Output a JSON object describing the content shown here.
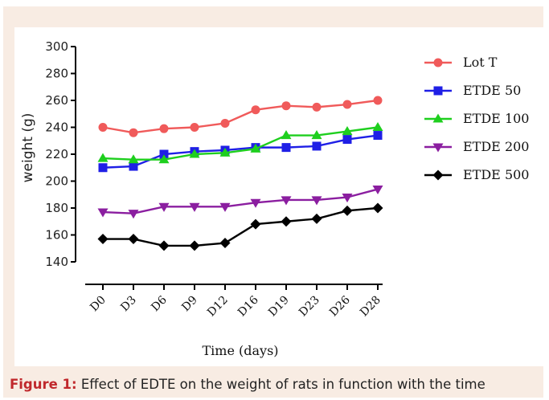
{
  "figure_label": "Figure 1:",
  "caption_text": " Effect of EDTE on the weight of rats in function with the time",
  "chart_data": {
    "type": "line",
    "title": "",
    "xlabel": "Time (days)",
    "ylabel": "weight (g)",
    "ylim": [
      140,
      300
    ],
    "yticks": [
      140,
      160,
      180,
      200,
      220,
      240,
      260,
      280,
      300
    ],
    "categories": [
      "D0",
      "D3",
      "D6",
      "D9",
      "D12",
      "D16",
      "D19",
      "D23",
      "D26",
      "D28"
    ],
    "legend_position": "right",
    "grid": false,
    "series": [
      {
        "name": "Lot T",
        "color": "#f05a5a",
        "marker": "circle",
        "values": [
          240,
          236,
          239,
          240,
          243,
          253,
          256,
          255,
          257,
          260
        ]
      },
      {
        "name": "ETDE 50",
        "color": "#1f1fe6",
        "marker": "square",
        "values": [
          210,
          211,
          220,
          222,
          223,
          225,
          225,
          226,
          231,
          234
        ]
      },
      {
        "name": "ETDE 100",
        "color": "#1ecf1e",
        "marker": "triangle-up",
        "values": [
          217,
          216,
          216,
          220,
          221,
          224,
          234,
          234,
          237,
          240
        ]
      },
      {
        "name": "ETDE 200",
        "color": "#8b1ea0",
        "marker": "triangle-down",
        "values": [
          177,
          176,
          181,
          181,
          181,
          184,
          186,
          186,
          188,
          194
        ]
      },
      {
        "name": "ETDE 500",
        "color": "#000000",
        "marker": "diamond",
        "values": [
          157,
          157,
          152,
          152,
          154,
          168,
          170,
          172,
          178,
          180
        ]
      }
    ]
  }
}
